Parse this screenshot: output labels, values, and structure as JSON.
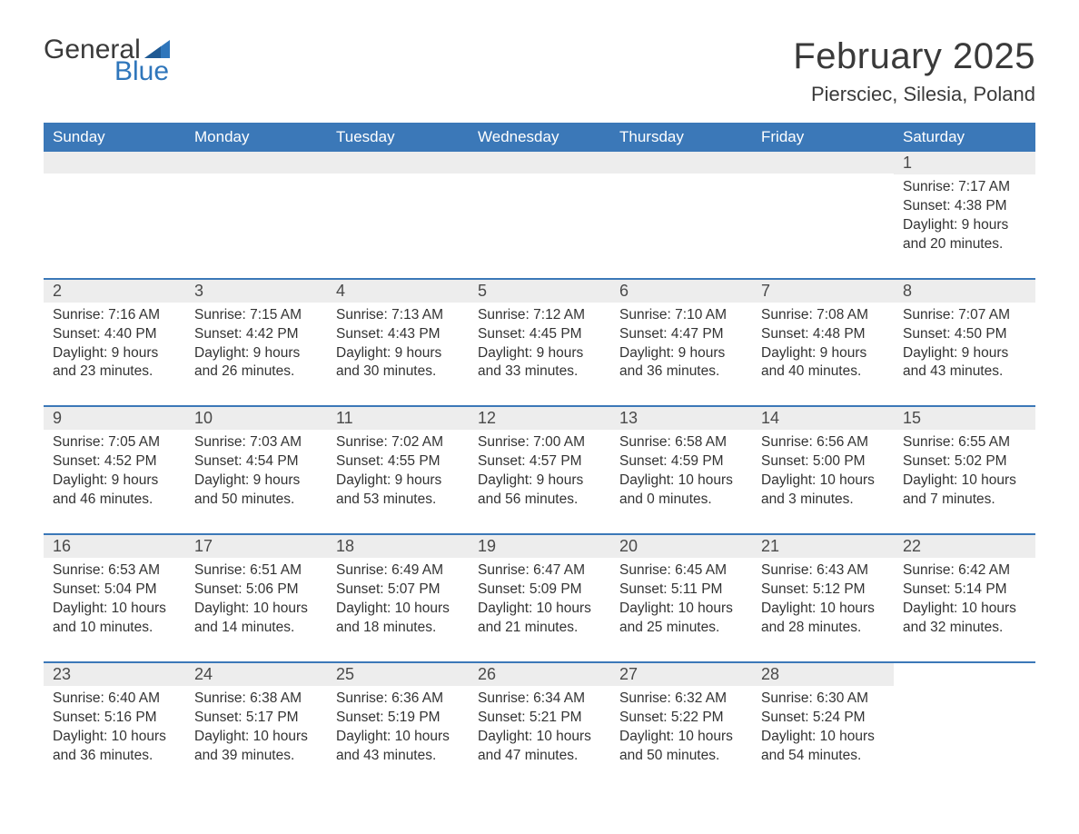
{
  "logo": {
    "text_general": "General",
    "text_blue": "Blue",
    "flag_color": "#2f76bb"
  },
  "title": {
    "month": "February 2025",
    "location": "Piersciec, Silesia, Poland"
  },
  "colors": {
    "header_bg": "#3b78b8",
    "header_text": "#ffffff",
    "daynum_bg": "#ededed",
    "week_divider": "#3b78b8",
    "body_text": "#333333",
    "logo_blue": "#2f76bb"
  },
  "weekdays": [
    "Sunday",
    "Monday",
    "Tuesday",
    "Wednesday",
    "Thursday",
    "Friday",
    "Saturday"
  ],
  "weeks": [
    [
      {
        "day": "",
        "lines": []
      },
      {
        "day": "",
        "lines": []
      },
      {
        "day": "",
        "lines": []
      },
      {
        "day": "",
        "lines": []
      },
      {
        "day": "",
        "lines": []
      },
      {
        "day": "",
        "lines": []
      },
      {
        "day": "1",
        "lines": [
          "Sunrise: 7:17 AM",
          "Sunset: 4:38 PM",
          "Daylight: 9 hours and 20 minutes."
        ]
      }
    ],
    [
      {
        "day": "2",
        "lines": [
          "Sunrise: 7:16 AM",
          "Sunset: 4:40 PM",
          "Daylight: 9 hours and 23 minutes."
        ]
      },
      {
        "day": "3",
        "lines": [
          "Sunrise: 7:15 AM",
          "Sunset: 4:42 PM",
          "Daylight: 9 hours and 26 minutes."
        ]
      },
      {
        "day": "4",
        "lines": [
          "Sunrise: 7:13 AM",
          "Sunset: 4:43 PM",
          "Daylight: 9 hours and 30 minutes."
        ]
      },
      {
        "day": "5",
        "lines": [
          "Sunrise: 7:12 AM",
          "Sunset: 4:45 PM",
          "Daylight: 9 hours and 33 minutes."
        ]
      },
      {
        "day": "6",
        "lines": [
          "Sunrise: 7:10 AM",
          "Sunset: 4:47 PM",
          "Daylight: 9 hours and 36 minutes."
        ]
      },
      {
        "day": "7",
        "lines": [
          "Sunrise: 7:08 AM",
          "Sunset: 4:48 PM",
          "Daylight: 9 hours and 40 minutes."
        ]
      },
      {
        "day": "8",
        "lines": [
          "Sunrise: 7:07 AM",
          "Sunset: 4:50 PM",
          "Daylight: 9 hours and 43 minutes."
        ]
      }
    ],
    [
      {
        "day": "9",
        "lines": [
          "Sunrise: 7:05 AM",
          "Sunset: 4:52 PM",
          "Daylight: 9 hours and 46 minutes."
        ]
      },
      {
        "day": "10",
        "lines": [
          "Sunrise: 7:03 AM",
          "Sunset: 4:54 PM",
          "Daylight: 9 hours and 50 minutes."
        ]
      },
      {
        "day": "11",
        "lines": [
          "Sunrise: 7:02 AM",
          "Sunset: 4:55 PM",
          "Daylight: 9 hours and 53 minutes."
        ]
      },
      {
        "day": "12",
        "lines": [
          "Sunrise: 7:00 AM",
          "Sunset: 4:57 PM",
          "Daylight: 9 hours and 56 minutes."
        ]
      },
      {
        "day": "13",
        "lines": [
          "Sunrise: 6:58 AM",
          "Sunset: 4:59 PM",
          "Daylight: 10 hours and 0 minutes."
        ]
      },
      {
        "day": "14",
        "lines": [
          "Sunrise: 6:56 AM",
          "Sunset: 5:00 PM",
          "Daylight: 10 hours and 3 minutes."
        ]
      },
      {
        "day": "15",
        "lines": [
          "Sunrise: 6:55 AM",
          "Sunset: 5:02 PM",
          "Daylight: 10 hours and 7 minutes."
        ]
      }
    ],
    [
      {
        "day": "16",
        "lines": [
          "Sunrise: 6:53 AM",
          "Sunset: 5:04 PM",
          "Daylight: 10 hours and 10 minutes."
        ]
      },
      {
        "day": "17",
        "lines": [
          "Sunrise: 6:51 AM",
          "Sunset: 5:06 PM",
          "Daylight: 10 hours and 14 minutes."
        ]
      },
      {
        "day": "18",
        "lines": [
          "Sunrise: 6:49 AM",
          "Sunset: 5:07 PM",
          "Daylight: 10 hours and 18 minutes."
        ]
      },
      {
        "day": "19",
        "lines": [
          "Sunrise: 6:47 AM",
          "Sunset: 5:09 PM",
          "Daylight: 10 hours and 21 minutes."
        ]
      },
      {
        "day": "20",
        "lines": [
          "Sunrise: 6:45 AM",
          "Sunset: 5:11 PM",
          "Daylight: 10 hours and 25 minutes."
        ]
      },
      {
        "day": "21",
        "lines": [
          "Sunrise: 6:43 AM",
          "Sunset: 5:12 PM",
          "Daylight: 10 hours and 28 minutes."
        ]
      },
      {
        "day": "22",
        "lines": [
          "Sunrise: 6:42 AM",
          "Sunset: 5:14 PM",
          "Daylight: 10 hours and 32 minutes."
        ]
      }
    ],
    [
      {
        "day": "23",
        "lines": [
          "Sunrise: 6:40 AM",
          "Sunset: 5:16 PM",
          "Daylight: 10 hours and 36 minutes."
        ]
      },
      {
        "day": "24",
        "lines": [
          "Sunrise: 6:38 AM",
          "Sunset: 5:17 PM",
          "Daylight: 10 hours and 39 minutes."
        ]
      },
      {
        "day": "25",
        "lines": [
          "Sunrise: 6:36 AM",
          "Sunset: 5:19 PM",
          "Daylight: 10 hours and 43 minutes."
        ]
      },
      {
        "day": "26",
        "lines": [
          "Sunrise: 6:34 AM",
          "Sunset: 5:21 PM",
          "Daylight: 10 hours and 47 minutes."
        ]
      },
      {
        "day": "27",
        "lines": [
          "Sunrise: 6:32 AM",
          "Sunset: 5:22 PM",
          "Daylight: 10 hours and 50 minutes."
        ]
      },
      {
        "day": "28",
        "lines": [
          "Sunrise: 6:30 AM",
          "Sunset: 5:24 PM",
          "Daylight: 10 hours and 54 minutes."
        ]
      },
      {
        "day": "",
        "lines": []
      }
    ]
  ]
}
